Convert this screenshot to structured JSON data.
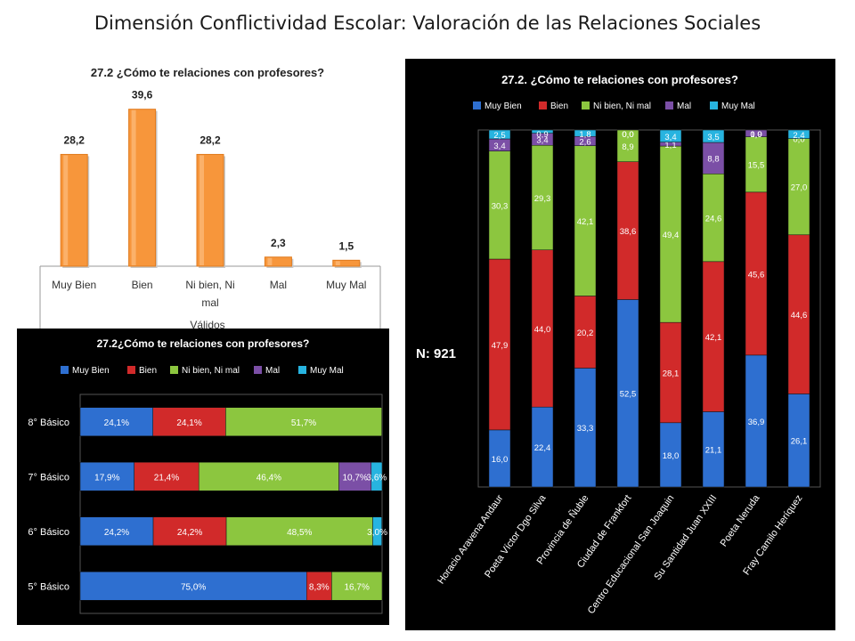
{
  "page": {
    "title": "Dimensión Conflictividad Escolar: Valoración de las Relaciones Sociales",
    "n_label": "N: 921"
  },
  "categories_response": [
    "Muy Bien",
    "Bien",
    "Ni bien, Ni mal",
    "Mal",
    "Muy Mal"
  ],
  "colors": {
    "muy_bien": "#2e6fd0",
    "bien": "#d12a2a",
    "ni_bien": "#8cc63f",
    "mal": "#7b4fa6",
    "muy_mal": "#27b4e0",
    "bar_orange": "#f7963b"
  },
  "chart_data": [
    {
      "id": "overall",
      "type": "bar",
      "title": "27.2 ¿Cómo te relaciones con profesores?",
      "categories": [
        "Muy Bien",
        "Bien",
        "Ni bien, Ni mal",
        "Mal",
        "Muy Mal"
      ],
      "category_lines": [
        [
          "Muy Bien"
        ],
        [
          "Bien"
        ],
        [
          "Ni bien, Ni",
          "mal"
        ],
        [
          "Mal"
        ],
        [
          "Muy Mal"
        ]
      ],
      "values": [
        28.2,
        39.6,
        28.2,
        2.3,
        1.5
      ],
      "value_labels": [
        "28,2",
        "39,6",
        "28,2",
        "2,3",
        "1,5"
      ],
      "group_label": "Válidos",
      "ylim": [
        0,
        42
      ]
    },
    {
      "id": "by_school",
      "type": "bar",
      "stacked": true,
      "title": "27.2. ¿Cómo te relaciones con profesores?",
      "legend_position": "top",
      "categories": [
        "Horacio Aravena Andaur",
        "Poeta Víctor Dgo Silva",
        "Provincia de Ñuble",
        "Ciudad de Frankfort",
        "Centro Educacional San Joaquin",
        "Su Santidad Juan XXIII",
        "Poeta Neruda",
        "Fray Camilo Heríquez"
      ],
      "series": [
        {
          "name": "Muy Bien",
          "values": [
            16.0,
            22.4,
            33.3,
            52.5,
            18.0,
            21.1,
            36.9,
            26.1
          ],
          "labels": [
            "16,0",
            "22,4",
            "33,3",
            "52,5",
            "18,0",
            "21,1",
            "36,9",
            "26,1"
          ]
        },
        {
          "name": "Bien",
          "values": [
            47.9,
            44.0,
            20.2,
            38.6,
            28.1,
            42.1,
            45.6,
            44.6
          ],
          "labels": [
            "47,9",
            "44,0",
            "20,2",
            "38,6",
            "28,1",
            "42,1",
            "45,6",
            "44,6"
          ]
        },
        {
          "name": "Ni bien, Ni mal",
          "values": [
            30.3,
            29.3,
            42.1,
            8.9,
            49.4,
            24.6,
            15.5,
            27.0
          ],
          "labels": [
            "30,3",
            "29,3",
            "42,1",
            "8,9",
            "49,4",
            "24,6",
            "15,5",
            "27,0"
          ]
        },
        {
          "name": "Mal",
          "values": [
            3.4,
            3.4,
            2.6,
            0.0,
            1.1,
            8.8,
            1.9,
            0.0
          ],
          "labels": [
            "3,4",
            "3,4",
            "2,6",
            "0,0",
            "1,1",
            "8,8",
            "1,9",
            "0,0"
          ]
        },
        {
          "name": "Muy Mal",
          "values": [
            2.5,
            0.9,
            1.8,
            0.0,
            3.4,
            3.5,
            0.0,
            2.4
          ],
          "labels": [
            "2,5",
            "0,9",
            "1,8",
            "0,0",
            "3,4",
            "3,5",
            "0,0",
            "2,4"
          ]
        }
      ],
      "ylim": [
        0,
        100
      ]
    },
    {
      "id": "by_grade",
      "type": "bar",
      "stacked": true,
      "orientation": "horizontal",
      "title": "27.2¿Cómo te relaciones con profesores?",
      "legend_position": "top",
      "categories": [
        "8° Básico",
        "7° Básico",
        "6° Básico",
        "5° Básico"
      ],
      "series": [
        {
          "name": "Muy Bien",
          "values": [
            24.1,
            17.9,
            24.2,
            75.0
          ],
          "labels": [
            "24,1%",
            "17,9%",
            "24,2%",
            "75,0%"
          ]
        },
        {
          "name": "Bien",
          "values": [
            24.1,
            21.4,
            24.2,
            8.3
          ],
          "labels": [
            "24,1%",
            "21,4%",
            "24,2%",
            "8,3%"
          ]
        },
        {
          "name": "Ni bien, Ni mal",
          "values": [
            51.7,
            46.4,
            48.5,
            16.7
          ],
          "labels": [
            "51,7%",
            "46,4%",
            "48,5%",
            "16,7%"
          ]
        },
        {
          "name": "Mal",
          "values": [
            0,
            10.7,
            0,
            0
          ],
          "labels": [
            "",
            "10,7%",
            "",
            ""
          ]
        },
        {
          "name": "Muy Mal",
          "values": [
            0,
            3.6,
            3.0,
            0
          ],
          "labels": [
            "",
            "3,6%",
            "3,0%",
            ""
          ]
        }
      ],
      "xlim": [
        0,
        100
      ]
    }
  ]
}
